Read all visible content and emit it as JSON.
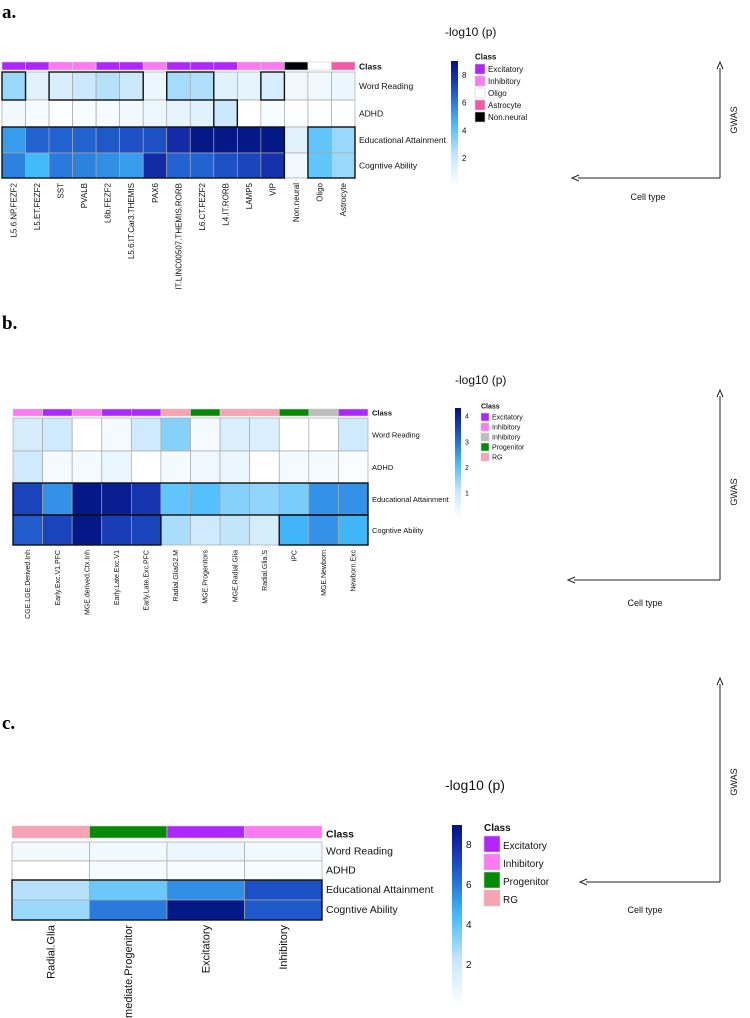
{
  "panel_letters": [
    "a.",
    "b.",
    "c."
  ],
  "chart_data": [
    {
      "type": "heatmap",
      "panel": "a.",
      "title": "-log10 (p)",
      "color_range": [
        0,
        9
      ],
      "colorbar_ticks": [
        2,
        4,
        6,
        8
      ],
      "class_row_label": "Class",
      "rows": [
        "Word Reading",
        "ADHD",
        "Educational Attainment",
        "Cogntive Ability"
      ],
      "columns": [
        "L5.6.NP.FEZF2",
        "L5.ET.FEZF2",
        "SST",
        "PVALB",
        "L6b.FEZF2",
        "L5.6.IT.Car3.THEMIS",
        "PAX6",
        "IT.LINC00507.THEMIS.RORB",
        "L6.CT.FEZF2",
        "L4.IT.RORB",
        "LAMP5",
        "VIP",
        "Non.neural",
        "Oligo",
        "Astrocyte"
      ],
      "column_classes": [
        "Excitatory",
        "Excitatory",
        "Inhibitory",
        "Inhibitory",
        "Excitatory",
        "Excitatory",
        "Inhibitory",
        "Excitatory",
        "Excitatory",
        "Excitatory",
        "Inhibitory",
        "Inhibitory",
        "Non.neural",
        "Oligo",
        "Astrocyte"
      ],
      "values": [
        [
          3.0,
          1.2,
          1.5,
          2.0,
          2.5,
          2.0,
          0.8,
          2.8,
          2.6,
          1.2,
          1.0,
          1.5,
          0.6,
          0.5,
          0.8
        ],
        [
          0.5,
          0.4,
          0.1,
          0.3,
          0.4,
          0.5,
          0.7,
          1.0,
          1.2,
          2.0,
          0.0,
          0.3,
          0.1,
          0.1,
          0.1
        ],
        [
          5.2,
          6.5,
          6.5,
          6.5,
          6.8,
          7.0,
          7.0,
          8.0,
          8.8,
          8.8,
          8.8,
          8.8,
          1.2,
          4.0,
          3.0
        ],
        [
          5.8,
          4.5,
          6.0,
          5.8,
          5.5,
          5.2,
          8.0,
          6.5,
          6.5,
          7.0,
          7.3,
          7.8,
          0.6,
          4.0,
          3.0
        ]
      ],
      "highlight_boxes": [
        [
          0,
          0,
          0,
          0
        ],
        [
          0,
          0,
          2,
          5
        ],
        [
          0,
          0,
          7,
          8
        ],
        [
          0,
          0,
          11,
          11
        ],
        [
          1,
          1,
          9,
          9
        ],
        [
          2,
          3,
          0,
          11
        ],
        [
          2,
          3,
          13,
          14
        ]
      ],
      "legend_title": "Class",
      "legend": [
        {
          "label": "Excitatory",
          "color": "#b026ff"
        },
        {
          "label": "Inhibitory",
          "color": "#fc7bf0"
        },
        {
          "label": "Oligo",
          "color": "#ffffff"
        },
        {
          "label": "Astrocyte",
          "color": "#f45aa6"
        },
        {
          "label": "Non.neural",
          "color": "#000000"
        }
      ],
      "axis_y_label": "GWAS",
      "axis_x_label": "Cell type"
    },
    {
      "type": "heatmap",
      "panel": "b.",
      "title": "-log10 (p)",
      "color_range": [
        0,
        4.3
      ],
      "colorbar_ticks": [
        1,
        2,
        3,
        4
      ],
      "class_row_label": "Class",
      "rows": [
        "Word Reading",
        "ADHD",
        "Educational Attainment",
        "Cogntive Ability"
      ],
      "columns": [
        "CGE.LGE.Derived.Inh",
        "Early.Exc.V1.PFC",
        "MGE.derived.Ctx.Inh",
        "Early.Late.Exc.V1",
        "Early.Late.Exc.PFC",
        "Radial.GliaG2.M",
        "MGE.Progenitors",
        "MGE.Radial.Glia",
        "Radial.Glia.S",
        "IPC",
        "MGE.Newborn",
        "Newborn.Exc"
      ],
      "column_classes": [
        "Inhibitory",
        "Excitatory",
        "Inhibitory",
        "Excitatory",
        "Excitatory",
        "RG",
        "Progenitor",
        "RG",
        "RG",
        "Progenitor",
        "Inhibitory2",
        "Excitatory"
      ],
      "values": [
        [
          0.8,
          0.9,
          0.0,
          0.2,
          0.9,
          1.6,
          0.2,
          0.7,
          0.7,
          0.0,
          0.0,
          0.9
        ],
        [
          0.9,
          0.2,
          0.2,
          0.4,
          0.0,
          0.2,
          0.3,
          0.4,
          0.0,
          0.2,
          0.2,
          0.1
        ],
        [
          3.5,
          2.6,
          4.2,
          4.1,
          3.7,
          1.9,
          2.0,
          1.6,
          1.5,
          1.7,
          2.6,
          2.6
        ],
        [
          3.2,
          3.5,
          4.2,
          3.6,
          3.5,
          1.3,
          0.9,
          1.1,
          0.8,
          2.2,
          2.6,
          2.2
        ]
      ],
      "highlight_boxes": [
        [
          2,
          2,
          0,
          11
        ],
        [
          3,
          3,
          0,
          4
        ],
        [
          3,
          3,
          9,
          11
        ]
      ],
      "legend_title": "Class",
      "legend": [
        {
          "label": "Excitatory",
          "color": "#b026ff"
        },
        {
          "label": "Inhibitory",
          "color": "#fc7bf0"
        },
        {
          "label": "Inhibitory",
          "color": "#bdbdbd"
        },
        {
          "label": "Progenitor",
          "color": "#058a05"
        },
        {
          "label": "RG",
          "color": "#f7a3b3"
        }
      ],
      "axis_y_label": "GWAS",
      "axis_x_label": "Cell type"
    },
    {
      "type": "heatmap",
      "panel": "c.",
      "title": "-log10 (p)",
      "color_range": [
        0,
        9
      ],
      "colorbar_ticks": [
        2,
        4,
        6,
        8
      ],
      "class_row_label": "Class",
      "rows": [
        "Word Reading",
        "ADHD",
        "Educational Attainment",
        "Cogntive Ability"
      ],
      "columns": [
        "Radial.Glia",
        "Intermediate.Progenitor",
        "Excitatory",
        "Inhibitory"
      ],
      "column_classes": [
        "RG",
        "Progenitor",
        "Excitatory",
        "Inhibitory"
      ],
      "values": [
        [
          0.5,
          0.5,
          0.8,
          0.5
        ],
        [
          0.0,
          0.4,
          0.3,
          0.3
        ],
        [
          2.5,
          3.8,
          5.5,
          7.0
        ],
        [
          3.0,
          6.0,
          8.8,
          6.8
        ]
      ],
      "highlight_boxes": [
        [
          2,
          3,
          0,
          3
        ]
      ],
      "legend_title": "Class",
      "legend": [
        {
          "label": "Excitatory",
          "color": "#b026ff"
        },
        {
          "label": "Inhibitory",
          "color": "#fc7bf0"
        },
        {
          "label": "Progenitor",
          "color": "#058a05"
        },
        {
          "label": "RG",
          "color": "#f7a3b3"
        }
      ],
      "axis_y_label": "GWAS",
      "axis_x_label": "Cell type"
    }
  ],
  "class_colors": {
    "Excitatory": "#b026ff",
    "Inhibitory": "#fc7bf0",
    "Inhibitory2": "#bdbdbd",
    "Oligo": "#ffffff",
    "Astrocyte": "#f45aa6",
    "Non.neural": "#000000",
    "Progenitor": "#058a05",
    "RG": "#f7a3b3"
  }
}
